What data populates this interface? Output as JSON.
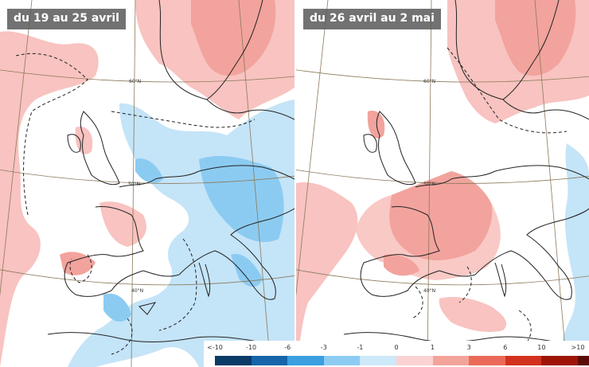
{
  "panels": [
    {
      "title": "du 19 au 25 avril",
      "lat_labels": [
        "60°N",
        "50°N",
        "40°N"
      ]
    },
    {
      "title": "du 26 avril au 2 mai",
      "lat_labels": [
        "60°N",
        "50°N",
        "40°N"
      ]
    }
  ],
  "legend": {
    "labels": [
      "<-10",
      "-10",
      "-6",
      "-3",
      "-1",
      "0",
      "1",
      "3",
      "6",
      "10",
      ">10"
    ],
    "colors": [
      "#0a3a66",
      "#1565a8",
      "#3b9fe0",
      "#8cccf3",
      "#cde9fa",
      "#fbd2d2",
      "#f3a49a",
      "#ea6a57",
      "#d2321e",
      "#9e1508",
      "#5a0c05"
    ]
  },
  "colors": {
    "anomaly_positive": "#f8c3c0",
    "anomaly_positive_strong": "#f2a39d",
    "anomaly_negative": "#c4e4f8",
    "anomaly_negative_strong": "#8ccbf1",
    "coastline": "#222222",
    "graticule": "#8a7a5a"
  }
}
